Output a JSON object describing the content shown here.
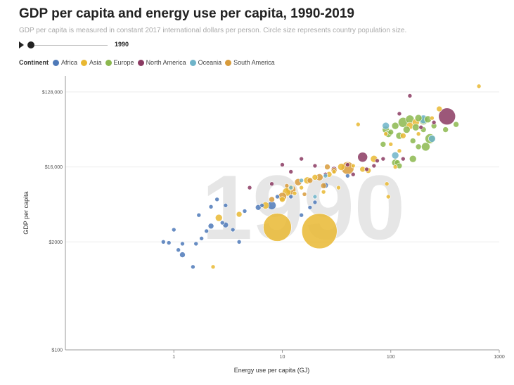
{
  "chart_data": {
    "type": "scatter",
    "title": "GDP per capita and energy use per capita, 1990-2019",
    "subtitle": "GDP per capita is measured in constant 2017 international dollars per person. Circle size represents country population size.",
    "year": "1990",
    "xlabel": "Energy use per capita (GJ)",
    "ylabel": "GDP per capita",
    "x_scale": "log",
    "y_scale": "log",
    "xlim": [
      0.1,
      1000
    ],
    "ylim": [
      100,
      200000
    ],
    "x_ticks": [
      {
        "value": 1,
        "label": "1"
      },
      {
        "value": 10,
        "label": "10"
      },
      {
        "value": 100,
        "label": "100"
      },
      {
        "value": 1000,
        "label": "1000"
      }
    ],
    "y_ticks": [
      {
        "value": 100,
        "label": "$100"
      },
      {
        "value": 2000,
        "label": "$2000"
      },
      {
        "value": 16000,
        "label": "$16,000"
      },
      {
        "value": 128000,
        "label": "$128,000"
      }
    ],
    "grid": true,
    "legend_title": "Continent",
    "legend_placement": "top-left",
    "series": [
      {
        "name": "Africa",
        "color": "#4e79b8",
        "points": [
          [
            0.8,
            2000
          ],
          [
            0.9,
            1950
          ],
          [
            1.1,
            1600
          ],
          [
            1.2,
            1400
          ],
          [
            1.2,
            1900
          ],
          [
            1.5,
            1000
          ],
          [
            1.6,
            1900
          ],
          [
            1.8,
            2200
          ],
          [
            2,
            2700
          ],
          [
            2.2,
            3100
          ],
          [
            1.7,
            4200
          ],
          [
            3,
            3200
          ],
          [
            2.8,
            3400
          ],
          [
            3.5,
            2800
          ],
          [
            4,
            2000
          ],
          [
            3,
            5500
          ],
          [
            2.5,
            6500
          ],
          [
            6,
            5200
          ],
          [
            6.5,
            5500
          ],
          [
            8,
            5500
          ],
          [
            9,
            7000
          ],
          [
            4.5,
            4700
          ],
          [
            12,
            7000
          ],
          [
            15,
            4200
          ],
          [
            20,
            6000
          ],
          [
            25,
            9600
          ],
          [
            40,
            12500
          ],
          [
            18,
            5200
          ],
          [
            2.2,
            5300
          ],
          [
            1,
            2800
          ]
        ],
        "sizes": [
          3,
          3,
          3,
          4,
          3,
          3,
          3,
          3,
          3,
          4,
          3,
          4,
          3,
          3,
          3,
          3,
          3,
          4,
          3,
          6,
          3,
          3,
          3,
          3,
          3,
          4,
          3,
          3,
          3,
          3
        ]
      },
      {
        "name": "Asia",
        "color": "#e9b832",
        "points": [
          [
            9,
            3000
          ],
          [
            22,
            2700
          ],
          [
            2.3,
            1000
          ],
          [
            2.6,
            3900
          ],
          [
            4,
            4300
          ],
          [
            7,
            5500
          ],
          [
            10,
            6500
          ],
          [
            11,
            8000
          ],
          [
            12,
            9000
          ],
          [
            13,
            7700
          ],
          [
            15,
            9000
          ],
          [
            17,
            11000
          ],
          [
            20,
            12000
          ],
          [
            24,
            8000
          ],
          [
            27,
            13000
          ],
          [
            30,
            14000
          ],
          [
            35,
            16000
          ],
          [
            45,
            16500
          ],
          [
            55,
            15000
          ],
          [
            62,
            14500
          ],
          [
            70,
            20000
          ],
          [
            90,
            40000
          ],
          [
            100,
            30000
          ],
          [
            130,
            38000
          ],
          [
            150,
            50000
          ],
          [
            170,
            55000
          ],
          [
            280,
            80000
          ],
          [
            240,
            62000
          ],
          [
            50,
            52000
          ],
          [
            95,
            7000
          ],
          [
            92,
            10000
          ],
          [
            180,
            40000
          ],
          [
            120,
            25000
          ],
          [
            110,
            16000
          ],
          [
            33,
            9000
          ],
          [
            650,
            150000
          ]
        ],
        "sizes": [
          20,
          25,
          3,
          5,
          4,
          5,
          4,
          6,
          4,
          3,
          3,
          5,
          4,
          3,
          4,
          3,
          5,
          3,
          4,
          4,
          5,
          3,
          3,
          4,
          5,
          5,
          4,
          3,
          3,
          3,
          3,
          3,
          3,
          3,
          3,
          3
        ]
      },
      {
        "name": "Europe",
        "color": "#8cb84f",
        "points": [
          [
            130,
            55000
          ],
          [
            150,
            60000
          ],
          [
            180,
            62000
          ],
          [
            200,
            58000
          ],
          [
            230,
            35000
          ],
          [
            210,
            28000
          ],
          [
            120,
            38000
          ],
          [
            90,
            45000
          ],
          [
            100,
            42000
          ],
          [
            140,
            45000
          ],
          [
            110,
            18000
          ],
          [
            115,
            18000
          ],
          [
            160,
            20000
          ],
          [
            170,
            48000
          ],
          [
            250,
            50000
          ],
          [
            220,
            60000
          ],
          [
            110,
            50000
          ],
          [
            85,
            30000
          ],
          [
            95,
            40000
          ],
          [
            120,
            16500
          ],
          [
            320,
            45000
          ],
          [
            400,
            52000
          ],
          [
            180,
            28000
          ],
          [
            160,
            33000
          ],
          [
            200,
            45000
          ]
        ],
        "sizes": [
          7,
          6,
          5,
          6,
          7,
          6,
          5,
          5,
          4,
          5,
          5,
          4,
          5,
          5,
          4,
          5,
          5,
          4,
          5,
          4,
          4,
          4,
          4,
          4,
          4
        ]
      },
      {
        "name": "North America",
        "color": "#8b3a62",
        "points": [
          [
            330,
            65000
          ],
          [
            55,
            21000
          ],
          [
            30,
            15000
          ],
          [
            20,
            16500
          ],
          [
            10,
            17000
          ],
          [
            15,
            20000
          ],
          [
            130,
            20000
          ],
          [
            85,
            20000
          ],
          [
            60,
            15000
          ],
          [
            40,
            17000
          ],
          [
            75,
            19000
          ],
          [
            25,
            13000
          ],
          [
            120,
            70000
          ],
          [
            150,
            115000
          ],
          [
            190,
            48000
          ],
          [
            250,
            55000
          ],
          [
            8,
            10000
          ],
          [
            12,
            14000
          ],
          [
            5,
            9000
          ],
          [
            70,
            16500
          ],
          [
            45,
            13000
          ]
        ],
        "sizes": [
          12,
          7,
          4,
          3,
          3,
          3,
          3,
          3,
          3,
          3,
          3,
          3,
          3,
          3,
          3,
          3,
          3,
          3,
          3,
          3,
          3
        ]
      },
      {
        "name": "Oceania",
        "color": "#6fb4c9",
        "points": [
          [
            200,
            60000
          ],
          [
            90,
            50000
          ],
          [
            110,
            22000
          ],
          [
            240,
            35000
          ],
          [
            20,
            7000
          ],
          [
            12,
            9000
          ],
          [
            25,
            12500
          ],
          [
            15,
            11000
          ]
        ],
        "sizes": [
          6,
          5,
          5,
          5,
          3,
          3,
          3,
          3
        ]
      },
      {
        "name": "South America",
        "color": "#d89b3b",
        "points": [
          [
            40,
            15500
          ],
          [
            12,
            8500
          ],
          [
            10,
            7000
          ],
          [
            14,
            10500
          ],
          [
            30,
            14500
          ],
          [
            22,
            12000
          ],
          [
            18,
            11000
          ],
          [
            8,
            6500
          ],
          [
            24,
            9500
          ],
          [
            26,
            16000
          ],
          [
            11,
            9500
          ],
          [
            16,
            7500
          ]
        ],
        "sizes": [
          9,
          7,
          6,
          5,
          4,
          5,
          4,
          4,
          4,
          4,
          3,
          3
        ]
      }
    ]
  }
}
